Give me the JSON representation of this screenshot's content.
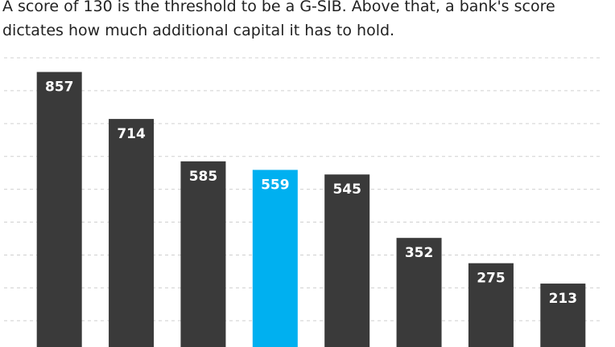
{
  "chart_data": {
    "type": "bar",
    "title_lines": [
      "A score of 130 is the threshold to be a G-SIB. Above that, a bank's score",
      "dictates how much additional capital it has to hold."
    ],
    "categories": [
      null,
      null,
      null,
      null,
      null,
      null,
      null,
      null
    ],
    "values": [
      857,
      714,
      585,
      559,
      545,
      352,
      275,
      213
    ],
    "colors": [
      "#3a3a3a",
      "#3a3a3a",
      "#3a3a3a",
      "#00b0f0",
      "#3a3a3a",
      "#3a3a3a",
      "#3a3a3a",
      "#3a3a3a"
    ],
    "ylim": [
      20,
      900
    ],
    "yticks": [
      100,
      200,
      300,
      400,
      500,
      600,
      700,
      800,
      900
    ],
    "grid": true
  }
}
